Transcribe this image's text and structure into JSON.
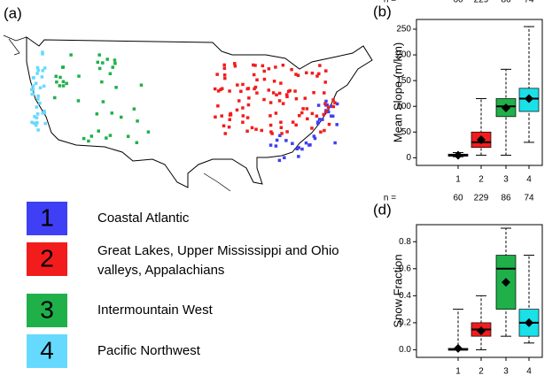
{
  "panels": {
    "a": "(a)"
  },
  "legend": [
    {
      "number": "1",
      "label": "Coastal Atlantic",
      "color": "#3f3ff5"
    },
    {
      "number": "2",
      "label": "Great Lakes, Upper Mississippi and Ohio",
      "label2": "valleys, Appalachians",
      "color": "#f21c1c"
    },
    {
      "number": "3",
      "label": "Intermountain West",
      "color": "#1fb04a"
    },
    {
      "number": "4",
      "label": "Pacific Northwest",
      "color": "#66d9ff"
    }
  ],
  "chart_data": [
    {
      "type": "box",
      "panel": "(b)",
      "ylabel": "Mean Slope (m/km)",
      "n_label": "n =",
      "categories": [
        "1",
        "2",
        "3",
        "4"
      ],
      "n": [
        60,
        229,
        86,
        74
      ],
      "colors": [
        "#222222",
        "#f21c1c",
        "#1fb04a",
        "#1ae0e8"
      ],
      "boxes": [
        {
          "min": 2,
          "q1": 3,
          "median": 5,
          "q3": 7,
          "max": 10,
          "mean": 5
        },
        {
          "min": 5,
          "q1": 20,
          "median": 30,
          "q3": 50,
          "max": 115,
          "mean": 35
        },
        {
          "min": 5,
          "q1": 80,
          "median": 100,
          "q3": 115,
          "max": 172,
          "mean": 97
        },
        {
          "min": 30,
          "q1": 90,
          "median": 115,
          "q3": 135,
          "max": 255,
          "mean": 115
        }
      ],
      "ylim": [
        -8,
        262
      ],
      "yticks": [
        0,
        50,
        100,
        150,
        200,
        250
      ]
    },
    {
      "type": "box",
      "panel": "(d)",
      "ylabel": "Snow Fraction",
      "n_label": "n =",
      "categories": [
        "1",
        "2",
        "3",
        "4"
      ],
      "n": [
        60,
        229,
        86,
        74
      ],
      "colors": [
        "#222222",
        "#f21c1c",
        "#1fb04a",
        "#1ae0e8"
      ],
      "boxes": [
        {
          "min": 0,
          "q1": 0,
          "median": 0,
          "q3": 0.01,
          "max": 0.3,
          "mean": 0.01
        },
        {
          "min": 0,
          "q1": 0.1,
          "median": 0.15,
          "q3": 0.2,
          "max": 0.4,
          "mean": 0.14
        },
        {
          "min": 0.1,
          "q1": 0.3,
          "median": 0.6,
          "q3": 0.7,
          "max": 0.9,
          "mean": 0.5
        },
        {
          "min": 0.05,
          "q1": 0.1,
          "median": 0.2,
          "q3": 0.3,
          "max": 0.7,
          "mean": 0.2
        }
      ],
      "ylim": [
        -0.03,
        0.9
      ],
      "yticks": [
        {
          "value": 0,
          "label": "0.0"
        },
        0.2,
        0.4,
        0.6,
        0.8
      ]
    }
  ]
}
